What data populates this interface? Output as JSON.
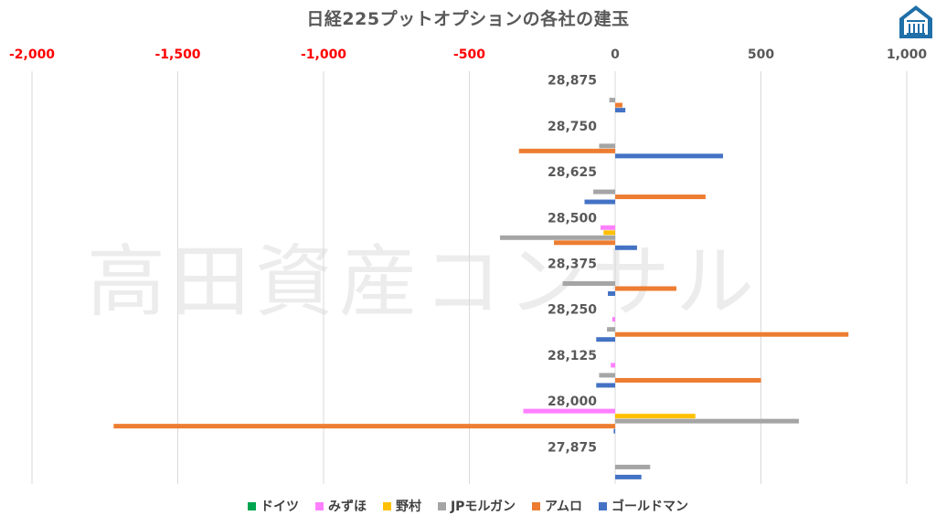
{
  "chart_data": {
    "type": "bar",
    "orientation": "horizontal",
    "title": "日経225プットオプションの各社の建玉",
    "categories": [
      "28,875",
      "28,750",
      "28,625",
      "28,500",
      "28,375",
      "28,250",
      "28,125",
      "28,000",
      "27,875"
    ],
    "xlim": [
      -2000,
      1000
    ],
    "x_ticks": [
      "-2,000",
      "-1,500",
      "-1,000",
      "-500",
      "0",
      "500",
      "1,000"
    ],
    "x_ticks_values": [
      -2000,
      -1500,
      -1000,
      -500,
      0,
      500,
      1000
    ],
    "negative_tick_color": "#ff0000",
    "grid": "vertical",
    "legend_position": "bottom",
    "series": [
      {
        "name": "ドイツ",
        "color": "#00a550",
        "values": [
          0,
          0,
          0,
          0,
          0,
          0,
          0,
          0,
          0
        ]
      },
      {
        "name": "みずほ",
        "color": "#ff80ff",
        "values": [
          0,
          0,
          0,
          -50,
          0,
          -10,
          -15,
          -315,
          0
        ]
      },
      {
        "name": "野村",
        "color": "#ffc000",
        "values": [
          0,
          0,
          0,
          -40,
          0,
          0,
          0,
          275,
          0
        ]
      },
      {
        "name": "JPモルガン",
        "color": "#a5a5a5",
        "values": [
          -20,
          -55,
          -75,
          -395,
          -180,
          -28,
          -55,
          630,
          120
        ]
      },
      {
        "name": "アムロ",
        "color": "#ed7d31",
        "values": [
          25,
          -330,
          310,
          -210,
          210,
          800,
          500,
          -1720,
          0
        ]
      },
      {
        "name": "ゴールドマン",
        "color": "#4472c4",
        "values": [
          35,
          370,
          -105,
          75,
          -25,
          -65,
          -65,
          -5,
          90
        ]
      }
    ]
  },
  "watermark": "高田資産コンサル",
  "logo": {
    "icon": "house-logo-icon",
    "color": "#1f6fa8"
  }
}
